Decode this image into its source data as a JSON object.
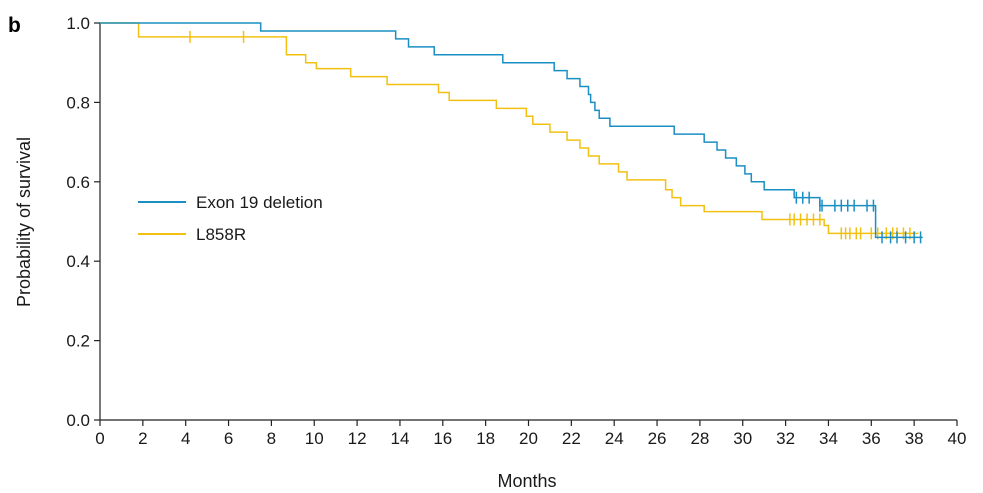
{
  "panel_label": "b",
  "chart_data": {
    "type": "line",
    "subtype": "kaplan-meier",
    "title": "",
    "xlabel": "Months",
    "ylabel": "Probability of survival",
    "xlim": [
      0,
      40
    ],
    "ylim": [
      0,
      1
    ],
    "xticks": [
      0,
      2,
      4,
      6,
      8,
      10,
      12,
      14,
      16,
      18,
      20,
      22,
      24,
      26,
      28,
      30,
      32,
      34,
      36,
      38,
      40
    ],
    "yticks": [
      0.0,
      0.2,
      0.4,
      0.6,
      0.8,
      1.0
    ],
    "ytick_labels": [
      "0.0",
      "0.2",
      "0.4",
      "0.6",
      "0.8",
      "1.0"
    ],
    "grid": false,
    "legend_position": "left-middle",
    "series": [
      {
        "name": "Exon 19 deletion",
        "color": "#1a8fc4",
        "steps": [
          [
            0,
            1.0
          ],
          [
            7.5,
            0.98
          ],
          [
            13.8,
            0.96
          ],
          [
            14.4,
            0.94
          ],
          [
            15.6,
            0.92
          ],
          [
            18.8,
            0.9
          ],
          [
            21.2,
            0.88
          ],
          [
            21.8,
            0.86
          ],
          [
            22.4,
            0.84
          ],
          [
            22.8,
            0.82
          ],
          [
            22.9,
            0.8
          ],
          [
            23.1,
            0.78
          ],
          [
            23.3,
            0.76
          ],
          [
            23.8,
            0.74
          ],
          [
            26.8,
            0.72
          ],
          [
            28.2,
            0.7
          ],
          [
            28.8,
            0.68
          ],
          [
            29.2,
            0.66
          ],
          [
            29.7,
            0.64
          ],
          [
            30.1,
            0.62
          ],
          [
            30.4,
            0.6
          ],
          [
            31.0,
            0.58
          ],
          [
            32.4,
            0.56
          ],
          [
            33.6,
            0.54
          ],
          [
            36.2,
            0.46
          ],
          [
            38.4,
            0.46
          ]
        ],
        "censored": [
          [
            32.5,
            0.56
          ],
          [
            32.8,
            0.56
          ],
          [
            33.1,
            0.56
          ],
          [
            33.6,
            0.54
          ],
          [
            33.7,
            0.54
          ],
          [
            34.3,
            0.54
          ],
          [
            34.6,
            0.54
          ],
          [
            34.9,
            0.54
          ],
          [
            35.2,
            0.54
          ],
          [
            35.8,
            0.54
          ],
          [
            36.1,
            0.54
          ],
          [
            36.5,
            0.46
          ],
          [
            36.9,
            0.46
          ],
          [
            37.2,
            0.46
          ],
          [
            37.6,
            0.46
          ],
          [
            38.0,
            0.46
          ],
          [
            38.3,
            0.46
          ]
        ]
      },
      {
        "name": "L858R",
        "color": "#f2c010",
        "steps": [
          [
            0,
            1.0
          ],
          [
            1.8,
            0.965
          ],
          [
            8.7,
            0.92
          ],
          [
            9.6,
            0.9
          ],
          [
            10.1,
            0.885
          ],
          [
            11.7,
            0.865
          ],
          [
            13.4,
            0.845
          ],
          [
            15.8,
            0.825
          ],
          [
            16.3,
            0.805
          ],
          [
            18.5,
            0.785
          ],
          [
            19.9,
            0.765
          ],
          [
            20.2,
            0.745
          ],
          [
            21.0,
            0.725
          ],
          [
            21.8,
            0.705
          ],
          [
            22.4,
            0.685
          ],
          [
            22.8,
            0.665
          ],
          [
            23.3,
            0.645
          ],
          [
            24.2,
            0.625
          ],
          [
            24.6,
            0.605
          ],
          [
            26.4,
            0.58
          ],
          [
            26.7,
            0.56
          ],
          [
            27.1,
            0.54
          ],
          [
            28.2,
            0.525
          ],
          [
            30.9,
            0.505
          ],
          [
            33.8,
            0.49
          ],
          [
            34.0,
            0.47
          ],
          [
            38.2,
            0.47
          ]
        ],
        "censored": [
          [
            4.2,
            0.965
          ],
          [
            6.7,
            0.965
          ],
          [
            32.2,
            0.505
          ],
          [
            32.4,
            0.505
          ],
          [
            32.7,
            0.505
          ],
          [
            33.0,
            0.505
          ],
          [
            33.3,
            0.505
          ],
          [
            33.6,
            0.505
          ],
          [
            34.6,
            0.47
          ],
          [
            34.8,
            0.47
          ],
          [
            35.0,
            0.47
          ],
          [
            35.3,
            0.47
          ],
          [
            35.5,
            0.47
          ],
          [
            36.0,
            0.47
          ],
          [
            36.3,
            0.47
          ],
          [
            36.7,
            0.47
          ],
          [
            37.0,
            0.47
          ],
          [
            37.2,
            0.47
          ],
          [
            37.5,
            0.47
          ],
          [
            37.8,
            0.47
          ]
        ]
      }
    ]
  }
}
